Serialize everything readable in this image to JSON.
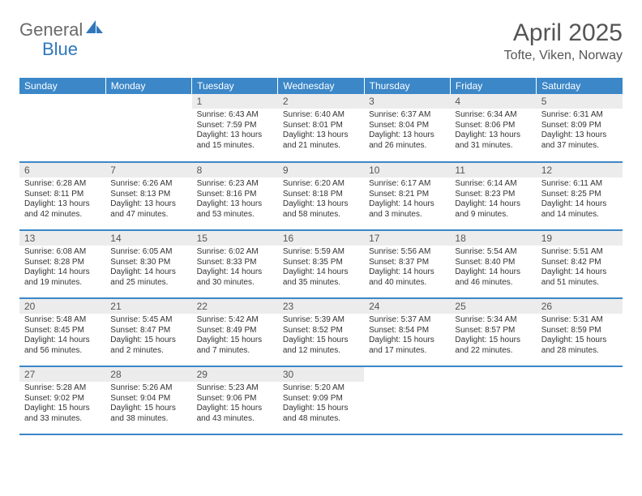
{
  "logo": {
    "general": "General",
    "blue": "Blue"
  },
  "title": "April 2025",
  "location": "Tofte, Viken, Norway",
  "colors": {
    "header_bg": "#3b87c8",
    "header_text": "#ffffff",
    "daynum_bg": "#ececec",
    "border": "#3b87c8",
    "accent": "#2f77bb",
    "muted": "#6a6a6a"
  },
  "weekdays": [
    "Sunday",
    "Monday",
    "Tuesday",
    "Wednesday",
    "Thursday",
    "Friday",
    "Saturday"
  ],
  "grid": [
    [
      null,
      null,
      {
        "n": "1",
        "sr": "6:43 AM",
        "ss": "7:59 PM",
        "dl": "13 hours and 15 minutes."
      },
      {
        "n": "2",
        "sr": "6:40 AM",
        "ss": "8:01 PM",
        "dl": "13 hours and 21 minutes."
      },
      {
        "n": "3",
        "sr": "6:37 AM",
        "ss": "8:04 PM",
        "dl": "13 hours and 26 minutes."
      },
      {
        "n": "4",
        "sr": "6:34 AM",
        "ss": "8:06 PM",
        "dl": "13 hours and 31 minutes."
      },
      {
        "n": "5",
        "sr": "6:31 AM",
        "ss": "8:09 PM",
        "dl": "13 hours and 37 minutes."
      }
    ],
    [
      {
        "n": "6",
        "sr": "6:28 AM",
        "ss": "8:11 PM",
        "dl": "13 hours and 42 minutes."
      },
      {
        "n": "7",
        "sr": "6:26 AM",
        "ss": "8:13 PM",
        "dl": "13 hours and 47 minutes."
      },
      {
        "n": "8",
        "sr": "6:23 AM",
        "ss": "8:16 PM",
        "dl": "13 hours and 53 minutes."
      },
      {
        "n": "9",
        "sr": "6:20 AM",
        "ss": "8:18 PM",
        "dl": "13 hours and 58 minutes."
      },
      {
        "n": "10",
        "sr": "6:17 AM",
        "ss": "8:21 PM",
        "dl": "14 hours and 3 minutes."
      },
      {
        "n": "11",
        "sr": "6:14 AM",
        "ss": "8:23 PM",
        "dl": "14 hours and 9 minutes."
      },
      {
        "n": "12",
        "sr": "6:11 AM",
        "ss": "8:25 PM",
        "dl": "14 hours and 14 minutes."
      }
    ],
    [
      {
        "n": "13",
        "sr": "6:08 AM",
        "ss": "8:28 PM",
        "dl": "14 hours and 19 minutes."
      },
      {
        "n": "14",
        "sr": "6:05 AM",
        "ss": "8:30 PM",
        "dl": "14 hours and 25 minutes."
      },
      {
        "n": "15",
        "sr": "6:02 AM",
        "ss": "8:33 PM",
        "dl": "14 hours and 30 minutes."
      },
      {
        "n": "16",
        "sr": "5:59 AM",
        "ss": "8:35 PM",
        "dl": "14 hours and 35 minutes."
      },
      {
        "n": "17",
        "sr": "5:56 AM",
        "ss": "8:37 PM",
        "dl": "14 hours and 40 minutes."
      },
      {
        "n": "18",
        "sr": "5:54 AM",
        "ss": "8:40 PM",
        "dl": "14 hours and 46 minutes."
      },
      {
        "n": "19",
        "sr": "5:51 AM",
        "ss": "8:42 PM",
        "dl": "14 hours and 51 minutes."
      }
    ],
    [
      {
        "n": "20",
        "sr": "5:48 AM",
        "ss": "8:45 PM",
        "dl": "14 hours and 56 minutes."
      },
      {
        "n": "21",
        "sr": "5:45 AM",
        "ss": "8:47 PM",
        "dl": "15 hours and 2 minutes."
      },
      {
        "n": "22",
        "sr": "5:42 AM",
        "ss": "8:49 PM",
        "dl": "15 hours and 7 minutes."
      },
      {
        "n": "23",
        "sr": "5:39 AM",
        "ss": "8:52 PM",
        "dl": "15 hours and 12 minutes."
      },
      {
        "n": "24",
        "sr": "5:37 AM",
        "ss": "8:54 PM",
        "dl": "15 hours and 17 minutes."
      },
      {
        "n": "25",
        "sr": "5:34 AM",
        "ss": "8:57 PM",
        "dl": "15 hours and 22 minutes."
      },
      {
        "n": "26",
        "sr": "5:31 AM",
        "ss": "8:59 PM",
        "dl": "15 hours and 28 minutes."
      }
    ],
    [
      {
        "n": "27",
        "sr": "5:28 AM",
        "ss": "9:02 PM",
        "dl": "15 hours and 33 minutes."
      },
      {
        "n": "28",
        "sr": "5:26 AM",
        "ss": "9:04 PM",
        "dl": "15 hours and 38 minutes."
      },
      {
        "n": "29",
        "sr": "5:23 AM",
        "ss": "9:06 PM",
        "dl": "15 hours and 43 minutes."
      },
      {
        "n": "30",
        "sr": "5:20 AM",
        "ss": "9:09 PM",
        "dl": "15 hours and 48 minutes."
      },
      null,
      null,
      null
    ]
  ],
  "labels": {
    "sunrise": "Sunrise:",
    "sunset": "Sunset:",
    "daylight": "Daylight:"
  }
}
